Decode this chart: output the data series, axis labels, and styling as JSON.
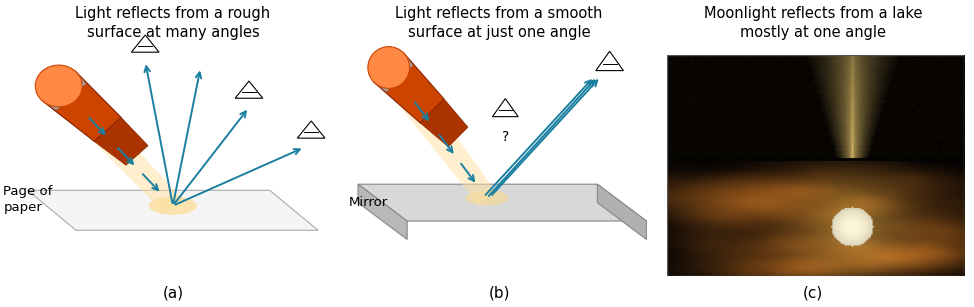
{
  "fig_width": 9.74,
  "fig_height": 3.07,
  "dpi": 100,
  "background_color": "#ffffff",
  "panel_labels": [
    "(a)",
    "(b)",
    "(c)"
  ],
  "panel_label_fontsize": 11,
  "titles": [
    "Light reflects from a rough\nsurface at many angles",
    "Light reflects from a smooth\nsurface at just one angle",
    "Moonlight reflects from a lake\nmostly at one angle"
  ],
  "title_fontsize": 10.5,
  "title_color": "#000000",
  "panel_a_label": "Page of\npaper",
  "panel_b_label": "Mirror",
  "arrow_color": "#1a7fa0",
  "flashlight_body_color": "#cc4400",
  "flashlight_lens_color": "#ff8844",
  "flashlight_band_color": "#aaaaaa",
  "beam_color": "#ffe0a0",
  "surface_paper_color": "#f8f8f8",
  "surface_paper_edge": "#999999",
  "mirror_top_color": "#d8d8d8",
  "mirror_side_color": "#b0b0b0",
  "mirror_edge_color": "#888888",
  "glow_color": "#ffd880",
  "moon_color": "#ffffff",
  "moon_inner_color": "#fffce0"
}
